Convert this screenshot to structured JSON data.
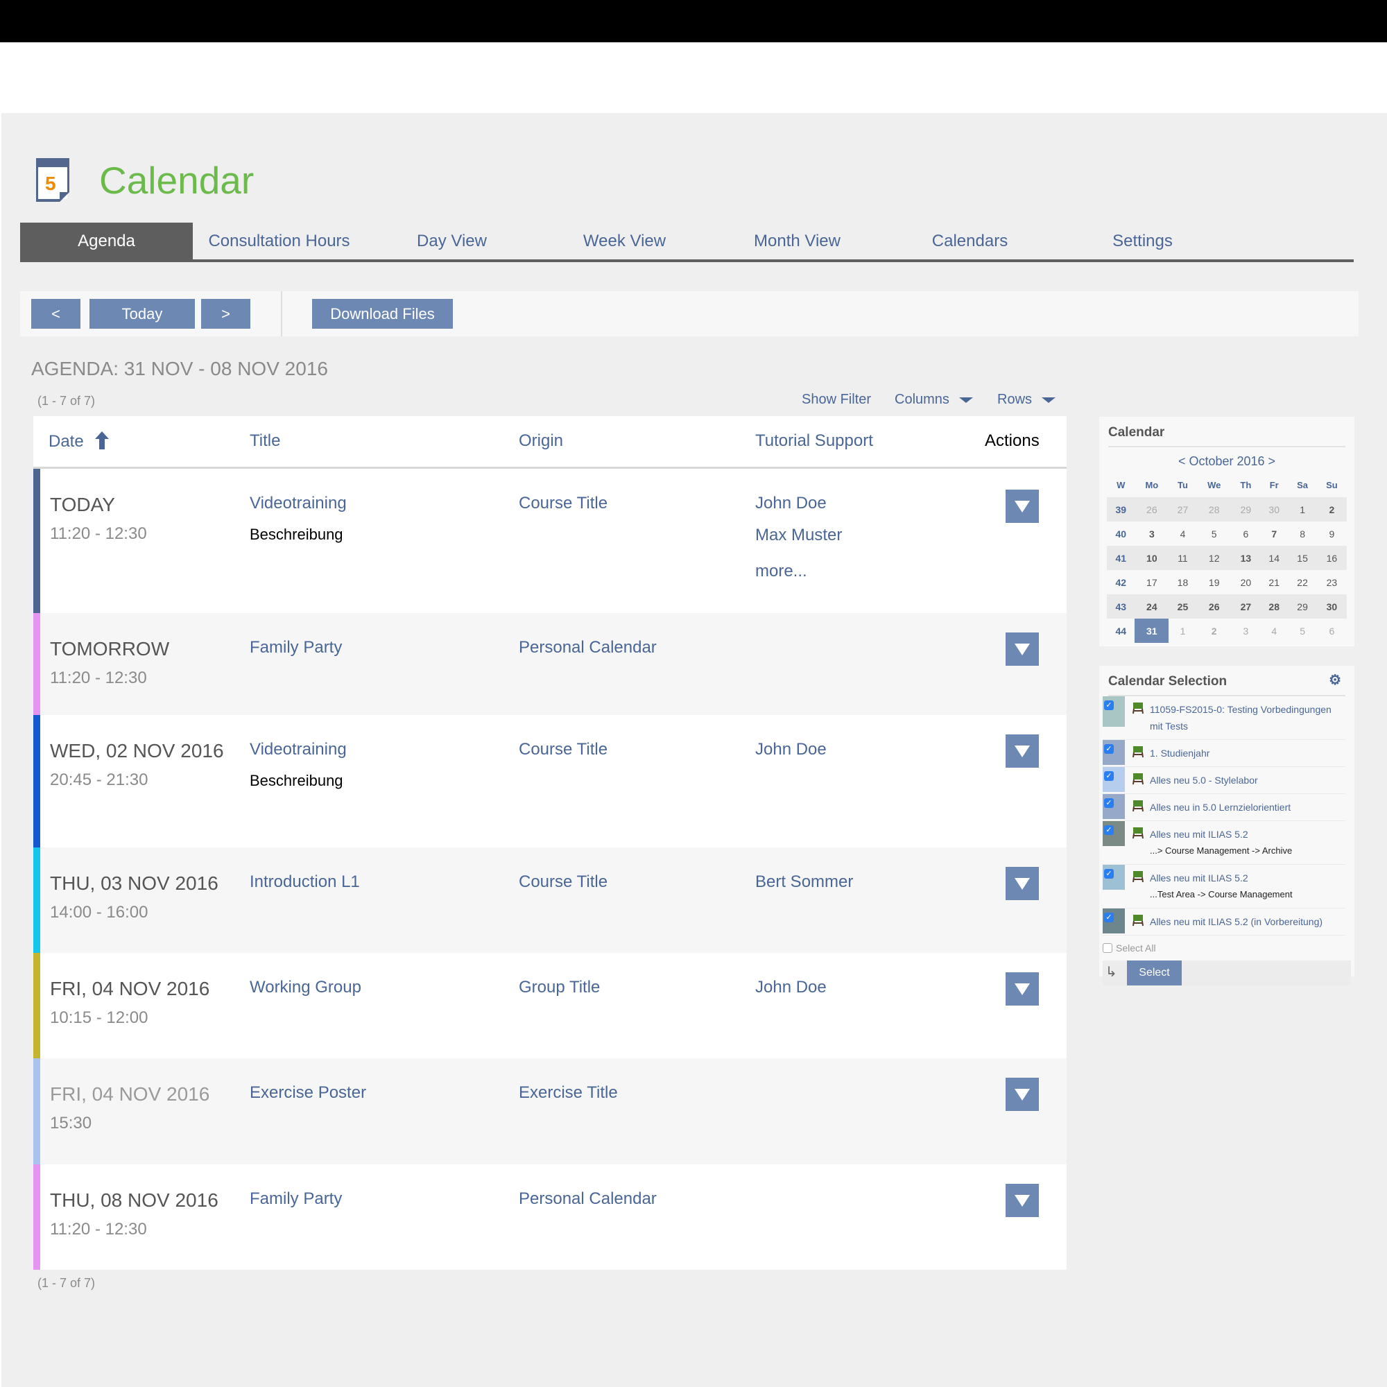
{
  "header": {
    "title": "Calendar",
    "icon_number": "5"
  },
  "tabs": [
    "Agenda",
    "Consultation Hours",
    "Day View",
    "Week View",
    "Month View",
    "Calendars",
    "Settings"
  ],
  "toolbar": {
    "prev": "<",
    "today": "Today",
    "next": ">",
    "download": "Download Files"
  },
  "agenda": {
    "heading": "AGENDA: 31 NOV - 08 NOV 2016",
    "count_top": "(1 - 7 of 7)",
    "count_bottom": "(1 - 7 of 7)",
    "show_filter": "Show Filter",
    "columns": "Columns",
    "rows": "Rows"
  },
  "table": {
    "headers": {
      "date": "Date",
      "title": "Title",
      "origin": "Origin",
      "tutor": "Tutorial Support",
      "actions": "Actions"
    },
    "rows": [
      {
        "date": "TODAY",
        "time": "11:20 - 12:30",
        "title": "Videotraining",
        "desc": "Beschreibung",
        "origin": "Course Title",
        "tutors": [
          "John Doe",
          "Max Muster"
        ],
        "more": "more...",
        "color": "#4d6590",
        "faded": false
      },
      {
        "date": "TOMORROW",
        "time": "11:20 - 12:30",
        "title": "Family Party",
        "desc": "",
        "origin": "Personal Calendar",
        "tutors": [],
        "more": "",
        "color": "#e594f2",
        "faded": false
      },
      {
        "date": "WED, 02 NOV 2016",
        "time": "20:45 - 21:30",
        "title": "Videotraining",
        "desc": "Beschreibung",
        "origin": "Course Title",
        "tutors": [
          "John Doe"
        ],
        "more": "",
        "color": "#1559d0",
        "faded": false
      },
      {
        "date": "THU, 03 NOV 2016",
        "time": "14:00 - 16:00",
        "title": "Introduction L1",
        "desc": "",
        "origin": "Course Title",
        "tutors": [
          "Bert Sommer"
        ],
        "more": "",
        "color": "#14c6ec",
        "faded": false
      },
      {
        "date": "FRI, 04 NOV 2016",
        "time": "10:15 - 12:00",
        "title": "Working Group",
        "desc": "",
        "origin": "Group Title",
        "tutors": [
          "John Doe"
        ],
        "more": "",
        "color": "#c3b52c",
        "faded": false
      },
      {
        "date": "FRI, 04 NOV 2016",
        "time": "15:30",
        "title": "Exercise Poster",
        "desc": "",
        "origin": "Exercise Title",
        "tutors": [],
        "more": "",
        "color": "#a9c3ee",
        "faded": true
      },
      {
        "date": "THU, 08 NOV 2016",
        "time": "11:20 - 12:30",
        "title": "Family Party",
        "desc": "",
        "origin": "Personal Calendar",
        "tutors": [],
        "more": "",
        "color": "#e594f2",
        "faded": false
      }
    ]
  },
  "mini_calendar": {
    "title": "Calendar",
    "month": "< October 2016 >",
    "weekdays": [
      "W",
      "Mo",
      "Tu",
      "We",
      "Th",
      "Fr",
      "Sa",
      "Su"
    ],
    "weeks": [
      {
        "w": "39",
        "days": [
          [
            "26",
            "g"
          ],
          [
            "27",
            "g"
          ],
          [
            "28",
            "g"
          ],
          [
            "29",
            "g"
          ],
          [
            "30",
            "g"
          ],
          [
            "1",
            ""
          ],
          [
            "2",
            "b"
          ]
        ]
      },
      {
        "w": "40",
        "days": [
          [
            "3",
            "b"
          ],
          [
            "4",
            ""
          ],
          [
            "5",
            ""
          ],
          [
            "6",
            ""
          ],
          [
            "7",
            "b"
          ],
          [
            "8",
            ""
          ],
          [
            "9",
            ""
          ]
        ]
      },
      {
        "w": "41",
        "days": [
          [
            "10",
            "b"
          ],
          [
            "11",
            ""
          ],
          [
            "12",
            ""
          ],
          [
            "13",
            "b"
          ],
          [
            "14",
            ""
          ],
          [
            "15",
            ""
          ],
          [
            "16",
            ""
          ]
        ]
      },
      {
        "w": "42",
        "days": [
          [
            "17",
            ""
          ],
          [
            "18",
            ""
          ],
          [
            "19",
            ""
          ],
          [
            "20",
            ""
          ],
          [
            "21",
            ""
          ],
          [
            "22",
            ""
          ],
          [
            "23",
            ""
          ]
        ]
      },
      {
        "w": "43",
        "days": [
          [
            "24",
            "b"
          ],
          [
            "25",
            "b"
          ],
          [
            "26",
            "b"
          ],
          [
            "27",
            "b"
          ],
          [
            "28",
            "b"
          ],
          [
            "29",
            ""
          ],
          [
            "30",
            "b"
          ]
        ]
      },
      {
        "w": "44",
        "days": [
          [
            "31",
            "sel"
          ],
          [
            "1",
            "g"
          ],
          [
            "2",
            "g b"
          ],
          [
            "3",
            "g"
          ],
          [
            "4",
            "g"
          ],
          [
            "5",
            "g"
          ],
          [
            "6",
            "g"
          ]
        ]
      }
    ]
  },
  "calendar_selection": {
    "title": "Calendar Selection",
    "items": [
      {
        "label": "11059-FS2015-0: Testing Vorbedingungen mit Tests",
        "sub": "",
        "color": "#a9c6c5",
        "checked": true
      },
      {
        "label": "1. Studienjahr",
        "sub": "",
        "color": "#97a9c8",
        "checked": true
      },
      {
        "label": "Alles neu 5.0 - Stylelabor",
        "sub": "",
        "color": "#b6cdee",
        "checked": true
      },
      {
        "label": "Alles neu in 5.0 Lernzielorientiert",
        "sub": "",
        "color": "#97a9c8",
        "checked": true
      },
      {
        "label": "Alles neu mit ILIAS 5.2",
        "sub": "...> Course Management -> Archive",
        "color": "#7b8a85",
        "checked": true
      },
      {
        "label": "Alles neu mit ILIAS 5.2",
        "sub": "...Test Area -> Course Management",
        "color": "#9dc0d4",
        "checked": true
      },
      {
        "label": "Alles neu mit ILIAS 5.2 (in Vorbereitung)",
        "sub": "",
        "color": "#6d858c",
        "checked": true
      }
    ],
    "select_all": "Select All",
    "select_button": "Select"
  }
}
